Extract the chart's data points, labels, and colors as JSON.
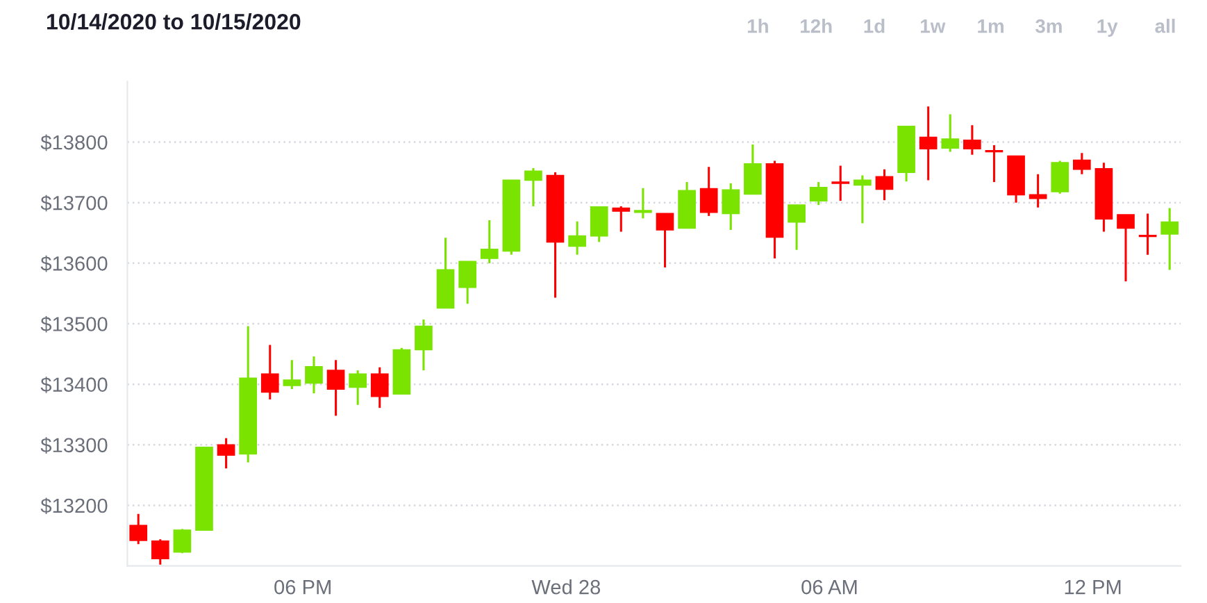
{
  "chart_data": {
    "type": "candlestick",
    "title": "10/14/2020 to 10/15/2020",
    "annotations": [
      "1h",
      "12h",
      "1d",
      "1w",
      "1m",
      "3m",
      "1y",
      "all"
    ],
    "x": [
      "2020-10-27T14:15",
      "2020-10-27T14:45",
      "2020-10-27T15:15",
      "2020-10-27T15:45",
      "2020-10-27T16:15",
      "2020-10-27T16:45",
      "2020-10-27T17:15",
      "2020-10-27T17:45",
      "2020-10-27T18:15",
      "2020-10-27T18:45",
      "2020-10-27T19:15",
      "2020-10-27T19:45",
      "2020-10-27T20:15",
      "2020-10-27T20:45",
      "2020-10-27T21:15",
      "2020-10-27T21:45",
      "2020-10-27T22:15",
      "2020-10-27T22:45",
      "2020-10-27T23:15",
      "2020-10-27T23:45",
      "2020-10-28T00:15",
      "2020-10-28T00:45",
      "2020-10-28T01:15",
      "2020-10-28T01:45",
      "2020-10-28T02:15",
      "2020-10-28T02:45",
      "2020-10-28T03:15",
      "2020-10-28T03:45",
      "2020-10-28T04:15",
      "2020-10-28T04:45",
      "2020-10-28T05:15",
      "2020-10-28T05:45",
      "2020-10-28T06:15",
      "2020-10-28T06:45",
      "2020-10-28T07:15",
      "2020-10-28T07:45",
      "2020-10-28T08:15",
      "2020-10-28T08:45",
      "2020-10-28T09:15",
      "2020-10-28T09:45",
      "2020-10-28T10:15",
      "2020-10-28T10:45",
      "2020-10-28T11:15",
      "2020-10-28T11:45",
      "2020-10-28T12:15",
      "2020-10-28T12:45",
      "2020-10-28T13:15",
      "2020-10-28T13:45"
    ],
    "ohlc": [
      [
        13167,
        13186,
        13136,
        13142
      ],
      [
        13141,
        13144,
        13102,
        13112
      ],
      [
        13123,
        13161,
        13121,
        13159
      ],
      [
        13159,
        13297,
        13158,
        13296
      ],
      [
        13300,
        13311,
        13261,
        13283
      ],
      [
        13285,
        13496,
        13271,
        13410
      ],
      [
        13417,
        13465,
        13375,
        13387
      ],
      [
        13398,
        13440,
        13392,
        13407
      ],
      [
        13402,
        13446,
        13385,
        13429
      ],
      [
        13423,
        13440,
        13348,
        13392
      ],
      [
        13395,
        13423,
        13366,
        13417
      ],
      [
        13417,
        13428,
        13361,
        13380
      ],
      [
        13384,
        13460,
        13384,
        13457
      ],
      [
        13457,
        13507,
        13423,
        13496
      ],
      [
        13526,
        13642,
        13526,
        13589
      ],
      [
        13560,
        13603,
        13533,
        13603
      ],
      [
        13608,
        13671,
        13600,
        13623
      ],
      [
        13620,
        13737,
        13614,
        13737
      ],
      [
        13737,
        13757,
        13694,
        13752
      ],
      [
        13745,
        13750,
        13543,
        13635
      ],
      [
        13628,
        13669,
        13614,
        13645
      ],
      [
        13645,
        13693,
        13635,
        13693
      ],
      [
        13691,
        13694,
        13652,
        13686
      ],
      [
        13684,
        13724,
        13674,
        13687
      ],
      [
        13682,
        13682,
        13593,
        13655
      ],
      [
        13658,
        13734,
        13658,
        13720
      ],
      [
        13723,
        13759,
        13678,
        13684
      ],
      [
        13682,
        13732,
        13655,
        13721
      ],
      [
        13714,
        13796,
        13714,
        13764
      ],
      [
        13764,
        13769,
        13608,
        13643
      ],
      [
        13668,
        13696,
        13622,
        13696
      ],
      [
        13703,
        13734,
        13696,
        13725
      ],
      [
        13734,
        13761,
        13703,
        13732
      ],
      [
        13729,
        13745,
        13666,
        13737
      ],
      [
        13743,
        13755,
        13704,
        13722
      ],
      [
        13750,
        13826,
        13735,
        13826
      ],
      [
        13808,
        13859,
        13737,
        13789
      ],
      [
        13790,
        13846,
        13784,
        13805
      ],
      [
        13803,
        13828,
        13779,
        13789
      ],
      [
        13786,
        13795,
        13734,
        13784
      ],
      [
        13777,
        13777,
        13700,
        13713
      ],
      [
        13713,
        13747,
        13692,
        13707
      ],
      [
        13718,
        13769,
        13715,
        13766
      ],
      [
        13770,
        13782,
        13747,
        13755
      ],
      [
        13756,
        13766,
        13652,
        13673
      ],
      [
        13680,
        13680,
        13570,
        13658
      ],
      [
        13646,
        13682,
        13614,
        13644
      ],
      [
        13648,
        13691,
        13589,
        13668
      ]
    ],
    "colors": [
      "#ff0000",
      "#ff0000",
      "#7be300",
      "#7be300",
      "#ff0000",
      "#7be300",
      "#ff0000",
      "#7be300",
      "#7be300",
      "#ff0000",
      "#7be300",
      "#ff0000",
      "#7be300",
      "#7be300",
      "#7be300",
      "#7be300",
      "#7be300",
      "#7be300",
      "#7be300",
      "#ff0000",
      "#7be300",
      "#7be300",
      "#ff0000",
      "#7be300",
      "#ff0000",
      "#7be300",
      "#ff0000",
      "#7be300",
      "#7be300",
      "#ff0000",
      "#7be300",
      "#7be300",
      "#ff0000",
      "#7be300",
      "#ff0000",
      "#7be300",
      "#ff0000",
      "#7be300",
      "#ff0000",
      "#ff0000",
      "#ff0000",
      "#ff0000",
      "#7be300",
      "#ff0000",
      "#ff0000",
      "#ff0000",
      "#ff0000",
      "#7be300"
    ],
    "xlim": [
      "2020-10-27T14:00",
      "2020-10-28T14:00"
    ],
    "xticks": [
      {
        "value": "2020-10-27T18:00",
        "label": "06 PM"
      },
      {
        "value": "2020-10-28T00:00",
        "label": "Wed 28"
      },
      {
        "value": "2020-10-28T06:00",
        "label": "06 AM"
      },
      {
        "value": "2020-10-28T12:00",
        "label": "12 PM"
      }
    ],
    "ylim": [
      13100,
      13900
    ],
    "yticks": [
      {
        "value": 13200,
        "label": "$13200"
      },
      {
        "value": 13300,
        "label": "$13300"
      },
      {
        "value": 13400,
        "label": "$13400"
      },
      {
        "value": 13500,
        "label": "$13500"
      },
      {
        "value": 13600,
        "label": "$13600"
      },
      {
        "value": 13700,
        "label": "$13700"
      },
      {
        "value": 13800,
        "label": "$13800"
      }
    ],
    "grid": "y"
  }
}
